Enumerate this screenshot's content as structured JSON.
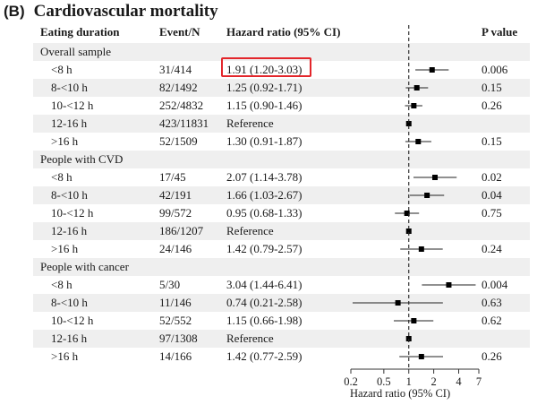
{
  "figure": {
    "panel_tag": "(B)",
    "title": "Cardiovascular mortality"
  },
  "headers": {
    "eating_duration": "Eating duration",
    "event_n": "Event/N",
    "hazard_ratio": "Hazard ratio (95% CI)",
    "p_value": "P value"
  },
  "highlight": {
    "color": "#e3262b",
    "group_index": 0,
    "row_index": 0
  },
  "chart_data": {
    "type": "forest",
    "title": "Cardiovascular mortality",
    "xlabel": "Hazard ratio (95% CI)",
    "xscale": "log",
    "xlim": [
      0.2,
      7
    ],
    "xticks": [
      0.2,
      0.5,
      1,
      2,
      4,
      7
    ],
    "xtick_labels": [
      "0.2",
      "0.5",
      "1",
      "2",
      "4",
      "7"
    ],
    "reference_line": 1,
    "groups": [
      {
        "name": "Overall sample",
        "rows": [
          {
            "label": "<8 h",
            "event_n": "31/414",
            "hr_text": "1.91 (1.20-3.03)",
            "hr": 1.91,
            "lo": 1.2,
            "hi": 3.03,
            "p": "0.006"
          },
          {
            "label": "8-<10 h",
            "event_n": "82/1492",
            "hr_text": "1.25 (0.92-1.71)",
            "hr": 1.25,
            "lo": 0.92,
            "hi": 1.71,
            "p": "0.15"
          },
          {
            "label": "10-<12 h",
            "event_n": "252/4832",
            "hr_text": "1.15 (0.90-1.46)",
            "hr": 1.15,
            "lo": 0.9,
            "hi": 1.46,
            "p": "0.26"
          },
          {
            "label": "12-16 h",
            "event_n": "423/11831",
            "hr_text": "Reference",
            "hr": 1,
            "lo": 1,
            "hi": 1,
            "p": ""
          },
          {
            "label": ">16 h",
            "event_n": "52/1509",
            "hr_text": "1.30 (0.91-1.87)",
            "hr": 1.3,
            "lo": 0.91,
            "hi": 1.87,
            "p": "0.15"
          }
        ]
      },
      {
        "name": "People with CVD",
        "rows": [
          {
            "label": "<8 h",
            "event_n": "17/45",
            "hr_text": "2.07 (1.14-3.78)",
            "hr": 2.07,
            "lo": 1.14,
            "hi": 3.78,
            "p": "0.02"
          },
          {
            "label": "8-<10 h",
            "event_n": "42/191",
            "hr_text": "1.66 (1.03-2.67)",
            "hr": 1.66,
            "lo": 1.03,
            "hi": 2.67,
            "p": "0.04"
          },
          {
            "label": "10-<12 h",
            "event_n": "99/572",
            "hr_text": "0.95 (0.68-1.33)",
            "hr": 0.95,
            "lo": 0.68,
            "hi": 1.33,
            "p": "0.75"
          },
          {
            "label": "12-16 h",
            "event_n": "186/1207",
            "hr_text": "Reference",
            "hr": 1,
            "lo": 1,
            "hi": 1,
            "p": ""
          },
          {
            "label": ">16 h",
            "event_n": "24/146",
            "hr_text": "1.42 (0.79-2.57)",
            "hr": 1.42,
            "lo": 0.79,
            "hi": 2.57,
            "p": "0.24"
          }
        ]
      },
      {
        "name": "People with cancer",
        "rows": [
          {
            "label": "<8 h",
            "event_n": "5/30",
            "hr_text": "3.04 (1.44-6.41)",
            "hr": 3.04,
            "lo": 1.44,
            "hi": 6.41,
            "p": "0.004"
          },
          {
            "label": "8-<10 h",
            "event_n": "11/146",
            "hr_text": "0.74 (0.21-2.58)",
            "hr": 0.74,
            "lo": 0.21,
            "hi": 2.58,
            "p": "0.63"
          },
          {
            "label": "10-<12 h",
            "event_n": "52/552",
            "hr_text": "1.15 (0.66-1.98)",
            "hr": 1.15,
            "lo": 0.66,
            "hi": 1.98,
            "p": "0.62"
          },
          {
            "label": "12-16 h",
            "event_n": "97/1308",
            "hr_text": "Reference",
            "hr": 1,
            "lo": 1,
            "hi": 1,
            "p": ""
          },
          {
            "label": ">16 h",
            "event_n": "14/166",
            "hr_text": "1.42 (0.77-2.59)",
            "hr": 1.42,
            "lo": 0.77,
            "hi": 2.59,
            "p": "0.26"
          }
        ]
      }
    ]
  }
}
